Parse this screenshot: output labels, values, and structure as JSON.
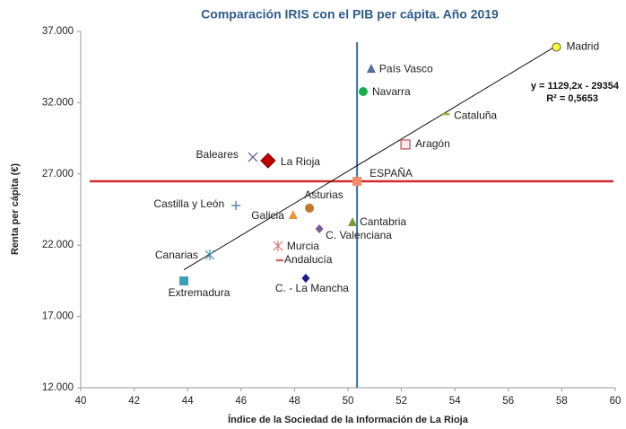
{
  "chart_data": {
    "type": "scatter",
    "title": "Comparación  IRIS con el PIB per cápita. Año 2019",
    "x_label": "Índice de la Sociedad de la Información de La Rioja",
    "y_label": "Renta per cápita  (€)",
    "xlim": [
      40,
      60
    ],
    "xticks": [
      40,
      42,
      44,
      46,
      48,
      50,
      52,
      54,
      56,
      58,
      60
    ],
    "ylim": [
      12000,
      37000
    ],
    "yticks": [
      {
        "value": 12000,
        "label": "12.000"
      },
      {
        "value": 17000,
        "label": "17.000"
      },
      {
        "value": 22000,
        "label": "22.000"
      },
      {
        "value": 27000,
        "label": "27.000"
      },
      {
        "value": 32000,
        "label": "32.000"
      },
      {
        "value": 37000,
        "label": "37.000"
      }
    ],
    "annotations": [
      "y = 1129,2x - 29354",
      "R² = 0,5653"
    ],
    "reference": "ESPAÑA",
    "reference_color": "#d42a2a",
    "reference_x_color": "#3e6e9e",
    "trendline_color": "#111111",
    "points": [
      {
        "name": "Madrid",
        "x": 57.8,
        "y": 35900,
        "marker": "circle",
        "color": "#ffff33"
      },
      {
        "name": "País Vasco",
        "x": 50.87,
        "y": 34350,
        "marker": "triangle",
        "color": "#4f6f99"
      },
      {
        "name": "Navarra",
        "x": 50.57,
        "y": 32780,
        "marker": "circle",
        "color": "#1aad4e"
      },
      {
        "name": "Cataluña",
        "x": 53.66,
        "y": 31200,
        "marker": "dash",
        "color": "#a0b040"
      },
      {
        "name": "Aragón",
        "x": 52.15,
        "y": 29070,
        "marker": "open-square",
        "color": "#c06060"
      },
      {
        "name": "Baleares",
        "x": 46.44,
        "y": 28180,
        "marker": "x",
        "color": "#6b5b95"
      },
      {
        "name": "La Rioja",
        "x": 47.01,
        "y": 27930,
        "marker": "diamond-big",
        "color": "#c00000"
      },
      {
        "name": "ESPAÑA",
        "x": 50.34,
        "y": 26480,
        "marker": "square",
        "color": "#f58a6a"
      },
      {
        "name": "Asturias",
        "x": 48.56,
        "y": 24600,
        "marker": "circle",
        "color": "#c07830"
      },
      {
        "name": "Castilla y León",
        "x": 45.81,
        "y": 24780,
        "marker": "plus",
        "color": "#4a7ab0"
      },
      {
        "name": "Galicia",
        "x": 47.95,
        "y": 24090,
        "marker": "triangle",
        "color": "#f0923c"
      },
      {
        "name": "Cantabria",
        "x": 50.17,
        "y": 23590,
        "marker": "triangle",
        "color": "#7a9a3a"
      },
      {
        "name": "C. Valenciana",
        "x": 48.93,
        "y": 23150,
        "marker": "diamond",
        "color": "#7a5aa0"
      },
      {
        "name": "Murcia",
        "x": 47.38,
        "y": 21950,
        "marker": "star",
        "color": "#e07070"
      },
      {
        "name": "Canarias",
        "x": 44.83,
        "y": 21320,
        "marker": "star",
        "color": "#3a8ab0"
      },
      {
        "name": "Andalucía",
        "x": 47.45,
        "y": 20940,
        "marker": "dash",
        "color": "#c07060"
      },
      {
        "name": "Extremadura",
        "x": 43.86,
        "y": 19490,
        "marker": "square",
        "color": "#3aa0b8"
      },
      {
        "name": "C. - La Mancha",
        "x": 48.42,
        "y": 19680,
        "marker": "diamond",
        "color": "#1a1a8a"
      }
    ]
  }
}
